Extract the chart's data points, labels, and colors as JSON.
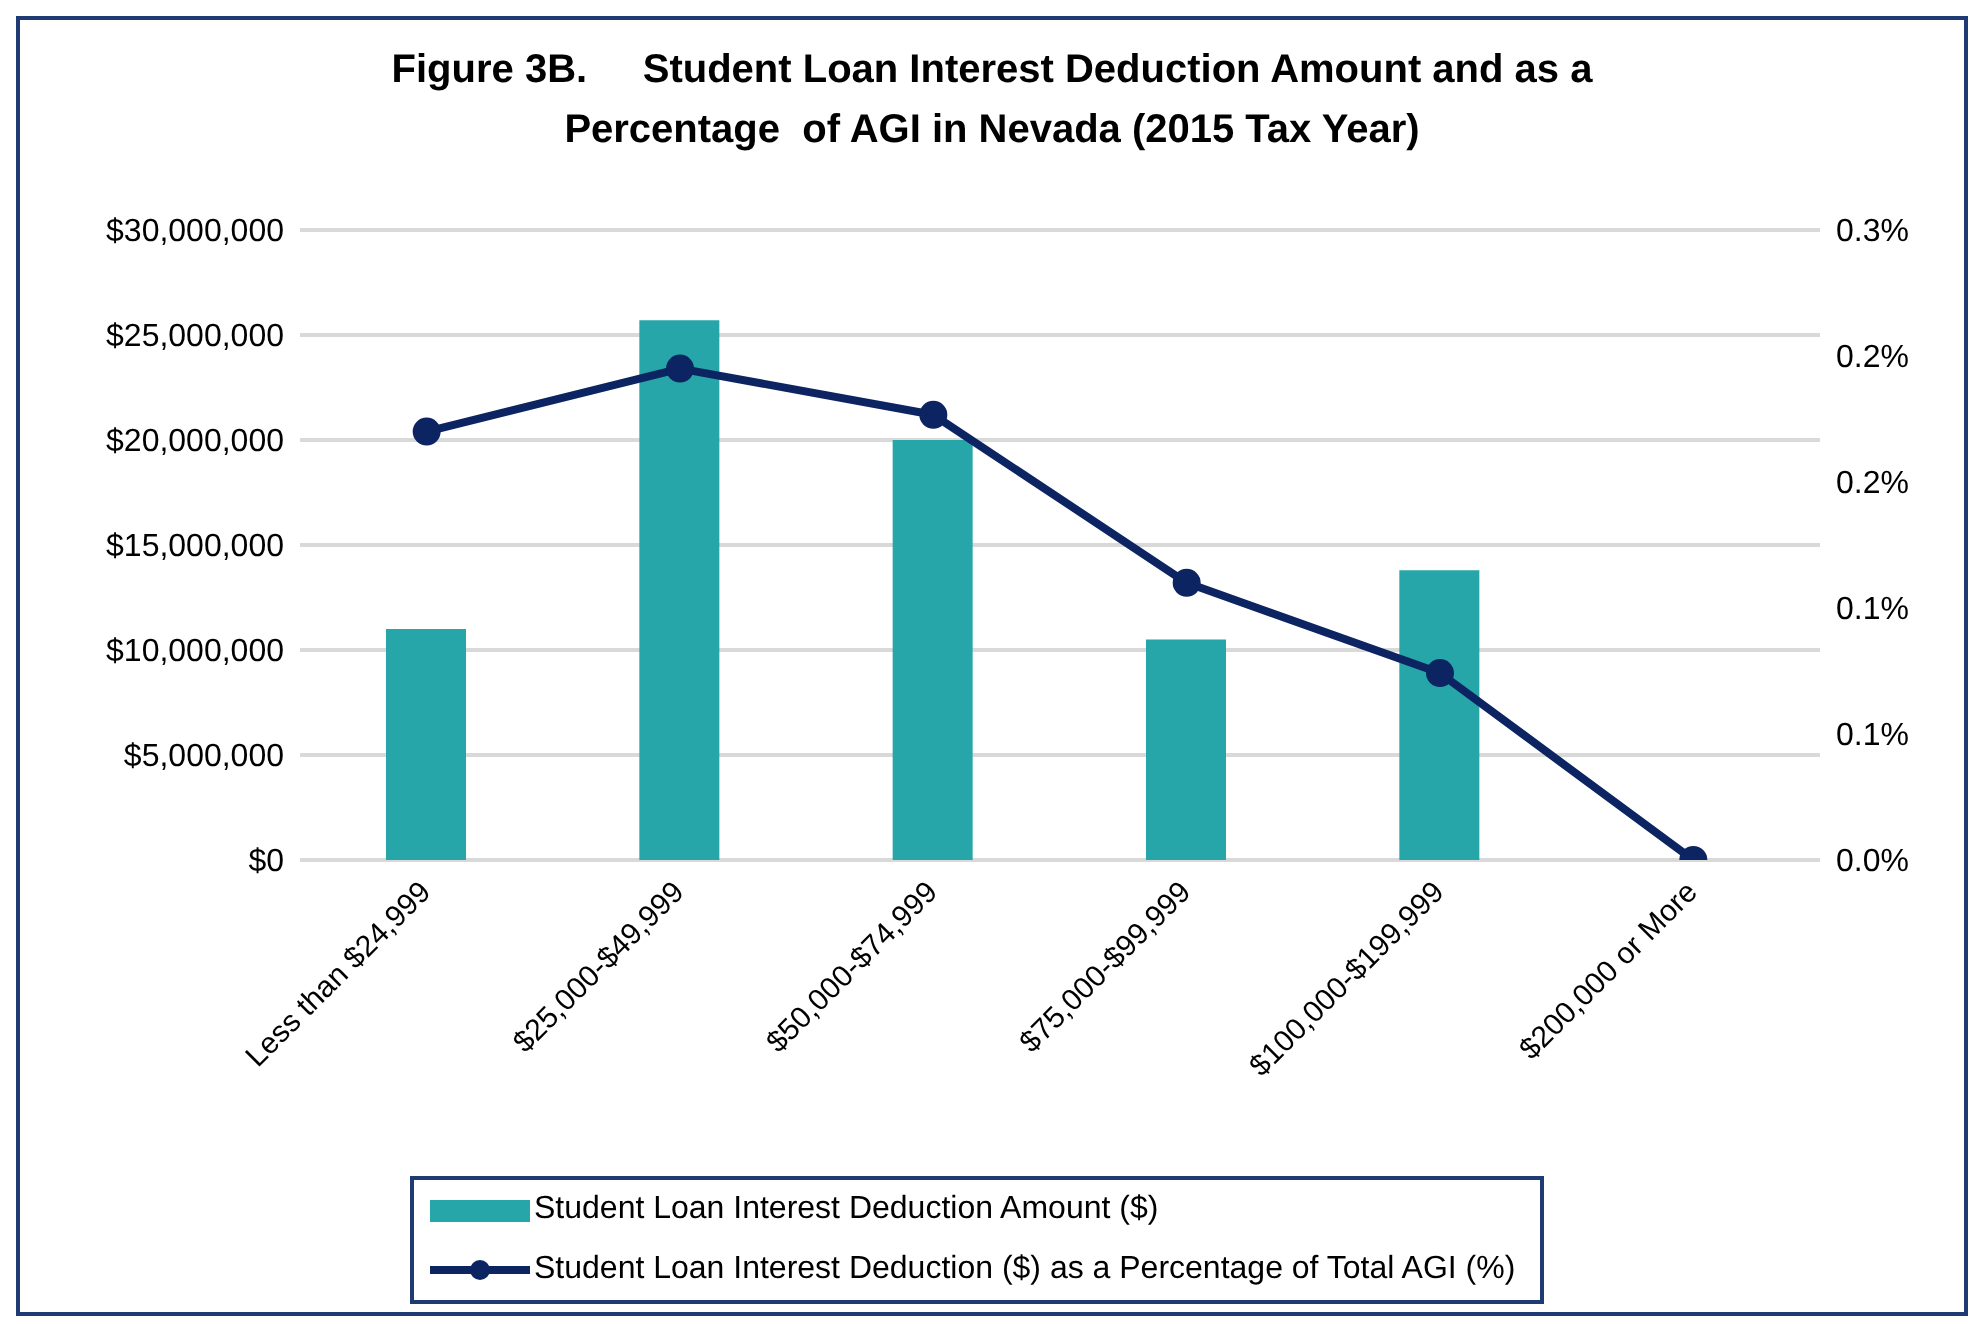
{
  "chart_data": {
    "type": "bar",
    "title": "Figure 3B.     Student Loan Interest Deduction Amount and as a\nPercentage  of AGI in Nevada (2015 Tax Year)",
    "categories": [
      "Less than $24,999",
      "$25,000-$49,999",
      "$50,000-$74,999",
      "$75,000-$99,999",
      "$100,000-$199,999",
      "$200,000 or More"
    ],
    "series": [
      {
        "name": "Student Loan Interest Deduction Amount ($)",
        "color": "#26a6a8",
        "values": [
          11000000,
          25700000,
          20000000,
          10500000,
          13800000,
          null
        ]
      },
      {
        "name": "Student Loan Interest Deduction ($) as a Percentage of Total AGI (%)",
        "type": "line",
        "axis": "y2",
        "color": "#0c2461",
        "marker": "circle",
        "values": [
          0.204,
          0.234,
          0.212,
          0.132,
          0.089,
          0
        ]
      }
    ],
    "ylim": [
      0,
      30000000
    ],
    "yticks": [
      {
        "value": 0,
        "label": "$0"
      },
      {
        "value": 5000000,
        "label": "$5,000,000"
      },
      {
        "value": 10000000,
        "label": "$10,000,000"
      },
      {
        "value": 15000000,
        "label": "$15,000,000"
      },
      {
        "value": 20000000,
        "label": "$20,000,000"
      },
      {
        "value": 25000000,
        "label": "$25,000,000"
      },
      {
        "value": 30000000,
        "label": "$30,000,000"
      }
    ],
    "y2lim": [
      0,
      0.3
    ],
    "y2ticks": [
      {
        "value": 0,
        "label": "0.0%"
      },
      {
        "value": 0.06,
        "label": "0.1%"
      },
      {
        "value": 0.12,
        "label": "0.1%"
      },
      {
        "value": 0.18,
        "label": "0.2%"
      },
      {
        "value": 0.24,
        "label": "0.2%"
      },
      {
        "value": 0.3,
        "label": "0.3%"
      }
    ],
    "grid": "y",
    "legend": "bottom"
  }
}
